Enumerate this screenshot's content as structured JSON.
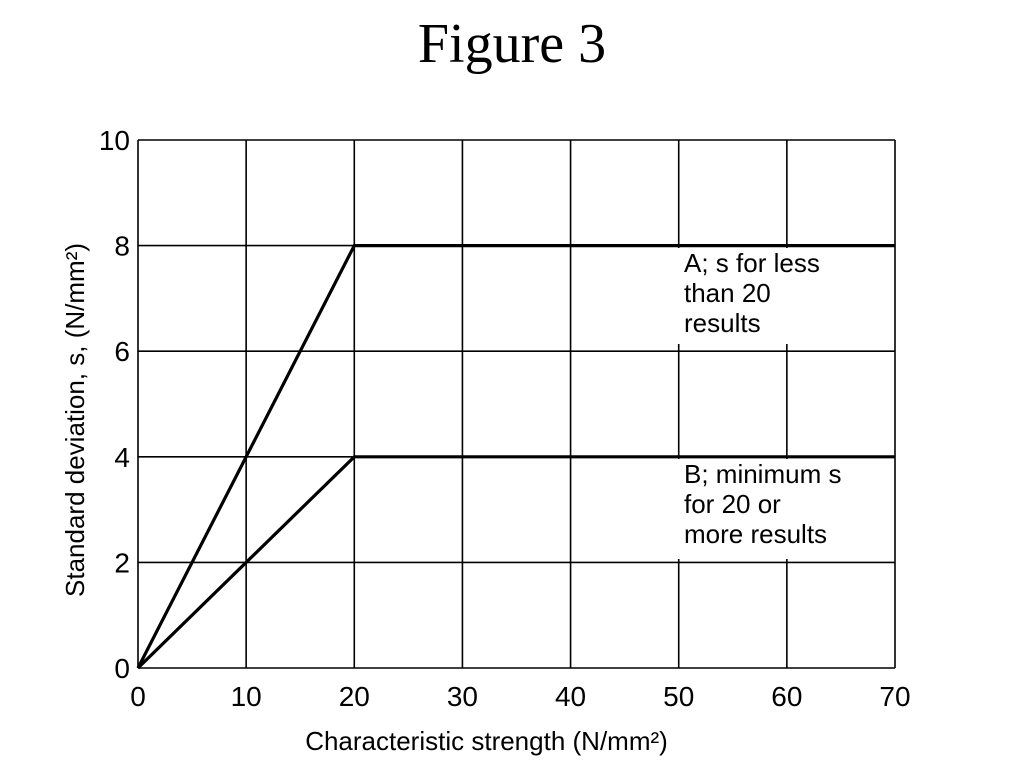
{
  "title": "Figure 3",
  "chart_data": {
    "type": "line",
    "title": "Figure 3",
    "xlabel": "Characteristic strength (N/mm²)",
    "ylabel": "Standard deviation, s, (N/mm²)",
    "xlim": [
      0,
      70
    ],
    "ylim": [
      0,
      10
    ],
    "xticks": [
      0,
      10,
      20,
      30,
      40,
      50,
      60,
      70
    ],
    "yticks": [
      0,
      2,
      4,
      6,
      8,
      10
    ],
    "grid": true,
    "series": [
      {
        "label_lines": [
          "A; s for less",
          "than 20",
          "results"
        ],
        "x": [
          0,
          20,
          70
        ],
        "y": [
          0,
          8,
          8
        ]
      },
      {
        "label_lines": [
          "B; minimum s",
          "for 20 or",
          "more results"
        ],
        "x": [
          0,
          20,
          70
        ],
        "y": [
          0,
          4,
          4
        ]
      }
    ],
    "colors": {
      "line": "#000000",
      "grid": "#000000",
      "background": "#ffffff"
    }
  }
}
